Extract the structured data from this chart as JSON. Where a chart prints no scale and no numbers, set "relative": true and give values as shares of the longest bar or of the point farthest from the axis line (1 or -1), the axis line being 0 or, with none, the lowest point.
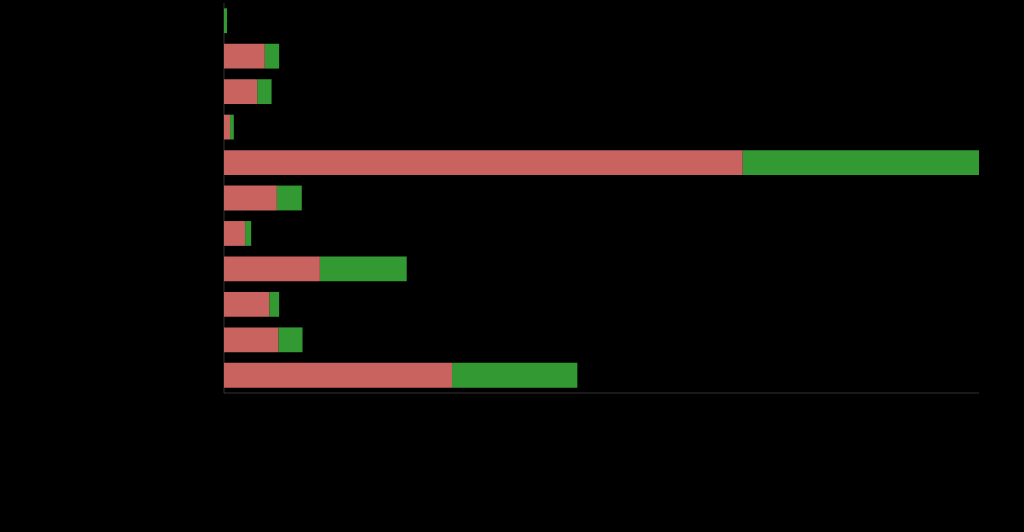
{
  "chart_data": {
    "type": "bar",
    "orientation": "horizontal",
    "stacked": true,
    "relative": true,
    "categories": [
      null,
      null,
      null,
      null,
      null,
      null,
      null,
      null,
      null,
      null,
      null
    ],
    "series": [
      {
        "color": "#c8635f",
        "values": [
          0,
          0.054,
          0.044,
          0.008,
          0.687,
          0.07,
          0.028,
          0.127,
          0.06,
          0.072,
          0.302
        ]
      },
      {
        "color": "#339933",
        "values": [
          0.004,
          0.019,
          0.019,
          0.005,
          0.313,
          0.033,
          0.008,
          0.115,
          0.013,
          0.032,
          0.166
        ]
      }
    ]
  }
}
